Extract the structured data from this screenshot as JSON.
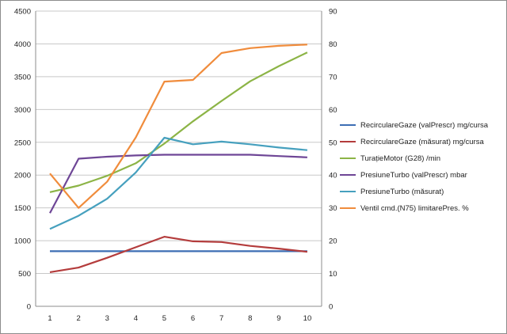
{
  "chart_data": {
    "type": "line",
    "categories": [
      "1",
      "2",
      "3",
      "4",
      "5",
      "6",
      "7",
      "8",
      "9",
      "10"
    ],
    "y_left": {
      "min": 0,
      "max": 4500,
      "step": 500,
      "ticks": [
        "0",
        "500",
        "1000",
        "1500",
        "2000",
        "2500",
        "3000",
        "3500",
        "4000",
        "4500"
      ]
    },
    "y_right": {
      "min": 0,
      "max": 90,
      "step": 10,
      "ticks": [
        "0",
        "10",
        "20",
        "30",
        "40",
        "50",
        "60",
        "70",
        "80",
        "90"
      ]
    },
    "grid": "horizontal",
    "legend_position": "right",
    "series": [
      {
        "name": "RecirculareGaze (valPrescr)  mg/cursa",
        "axis": "left",
        "color": "#3c6eb4",
        "values": [
          840,
          840,
          840,
          840,
          840,
          840,
          840,
          840,
          840,
          840
        ]
      },
      {
        "name": "RecirculareGaze (măsurat)  mg/cursa",
        "axis": "left",
        "color": "#b43c3c",
        "values": [
          520,
          590,
          740,
          900,
          1060,
          990,
          980,
          920,
          880,
          830
        ]
      },
      {
        "name": "TurațieMotor (G28)  /min",
        "axis": "left",
        "color": "#8cb446",
        "values": [
          1740,
          1840,
          1990,
          2180,
          2480,
          2820,
          3130,
          3430,
          3660,
          3870
        ]
      },
      {
        "name": "PresiuneTurbo (valPrescr)  mbar",
        "axis": "left",
        "color": "#6e4696",
        "values": [
          1420,
          2250,
          2280,
          2300,
          2310,
          2310,
          2310,
          2310,
          2290,
          2270
        ]
      },
      {
        "name": "PresiuneTurbo (măsurat)",
        "axis": "left",
        "color": "#46a0be",
        "values": [
          1180,
          1380,
          1640,
          2040,
          2570,
          2470,
          2510,
          2470,
          2420,
          2380
        ]
      },
      {
        "name": "Ventil cmd.(N75)  limitarePres.  %",
        "axis": "right",
        "color": "#f08c3c",
        "values": [
          40.5,
          30,
          38,
          51.5,
          68.5,
          69,
          77.2,
          78.7,
          79.4,
          79.8
        ]
      }
    ]
  }
}
